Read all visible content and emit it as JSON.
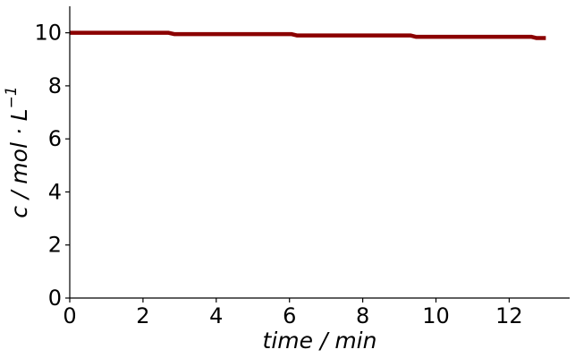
{
  "chart_data": {
    "type": "line",
    "xlabel": "time / min",
    "ylabel_parts": {
      "main": "c / mol · L",
      "sup": "−1"
    },
    "xlim": [
      0,
      13.65
    ],
    "ylim": [
      0,
      11
    ],
    "xticks": [
      0,
      2,
      4,
      6,
      8,
      10,
      12
    ],
    "yticks": [
      0,
      2,
      4,
      6,
      8,
      10
    ],
    "xtick_labels": [
      "0",
      "2",
      "4",
      "6",
      "8",
      "10",
      "12"
    ],
    "ytick_labels": [
      "0",
      "2",
      "4",
      "6",
      "8",
      "10"
    ],
    "grid": false,
    "series": [
      {
        "color": "#8b0000",
        "x": [
          0,
          2.7,
          2.85,
          6.05,
          6.2,
          9.3,
          9.45,
          12.6,
          12.75,
          13.0
        ],
        "y": [
          10.0,
          10.0,
          9.95,
          9.95,
          9.9,
          9.9,
          9.85,
          9.85,
          9.8,
          9.8
        ]
      }
    ]
  }
}
